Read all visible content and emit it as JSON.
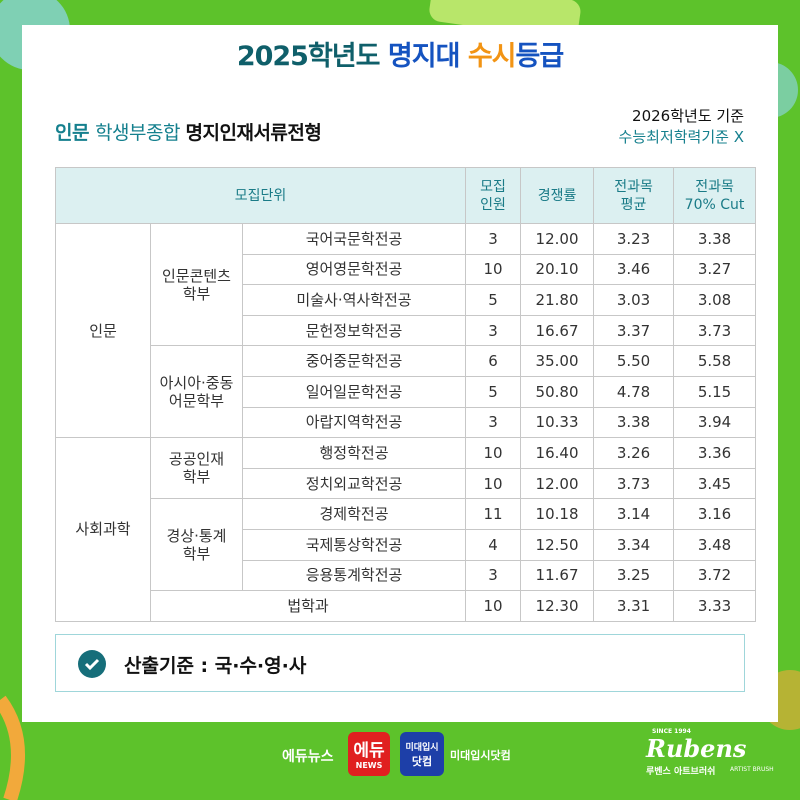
{
  "header": {
    "title": [
      "2025학년도 ",
      "명지대 ",
      "수시",
      "등급"
    ],
    "subtitle": [
      "인문 ",
      "학생부종합 ",
      "명지인재서류전형"
    ],
    "note": [
      "2026학년도 기준",
      "수능최저학력기준 X"
    ]
  },
  "table": {
    "header": [
      [
        "모집단위"
      ],
      [
        "모집",
        "인원"
      ],
      [
        "경쟁률"
      ],
      [
        "전과목",
        "평균"
      ],
      [
        "전과목",
        "70% Cut"
      ]
    ],
    "groups": [
      {
        "name": "인문",
        "divisions": [
          {
            "name": [
              "인문콘텐츠",
              "학부"
            ],
            "majors": [
              {
                "name": "국어국문학전공",
                "recruit": "3",
                "rate": "12.00",
                "avg": "3.23",
                "cut": "3.38"
              },
              {
                "name": "영어영문학전공",
                "recruit": "10",
                "rate": "20.10",
                "avg": "3.46",
                "cut": "3.27"
              },
              {
                "name": "미술사·역사학전공",
                "recruit": "5",
                "rate": "21.80",
                "avg": "3.03",
                "cut": "3.08"
              },
              {
                "name": "문헌정보학전공",
                "recruit": "3",
                "rate": "16.67",
                "avg": "3.37",
                "cut": "3.73"
              }
            ]
          },
          {
            "name": [
              "아시아·중동",
              "어문학부"
            ],
            "majors": [
              {
                "name": "중어중문학전공",
                "recruit": "6",
                "rate": "35.00",
                "avg": "5.50",
                "cut": "5.58"
              },
              {
                "name": "일어일문학전공",
                "recruit": "5",
                "rate": "50.80",
                "avg": "4.78",
                "cut": "5.15"
              },
              {
                "name": "아랍지역학전공",
                "recruit": "3",
                "rate": "10.33",
                "avg": "3.38",
                "cut": "3.94"
              }
            ]
          }
        ]
      },
      {
        "name": "사회과학",
        "divisions": [
          {
            "name": [
              "공공인재",
              "학부"
            ],
            "majors": [
              {
                "name": "행정학전공",
                "recruit": "10",
                "rate": "16.40",
                "avg": "3.26",
                "cut": "3.36"
              },
              {
                "name": "정치외교학전공",
                "recruit": "10",
                "rate": "12.00",
                "avg": "3.73",
                "cut": "3.45"
              }
            ]
          },
          {
            "name": [
              "경상·통계",
              "학부"
            ],
            "majors": [
              {
                "name": "경제학전공",
                "recruit": "11",
                "rate": "10.18",
                "avg": "3.14",
                "cut": "3.16"
              },
              {
                "name": "국제통상학전공",
                "recruit": "4",
                "rate": "12.50",
                "avg": "3.34",
                "cut": "3.48"
              },
              {
                "name": "응용통계학전공",
                "recruit": "3",
                "rate": "11.67",
                "avg": "3.25",
                "cut": "3.72"
              }
            ]
          },
          {
            "majors": [
              {
                "name": "법학과",
                "recruit": "10",
                "rate": "12.30",
                "avg": "3.31",
                "cut": "3.33"
              }
            ]
          }
        ]
      }
    ]
  },
  "footer": {
    "basis": "산출기준 : 국·수·영·사"
  },
  "logos": {
    "edunews": "에듀뉴스",
    "edu_badge": [
      "에듀",
      "NEWS"
    ],
    "midae_badge": [
      "미대입시",
      "닷컴"
    ],
    "midae": "미대입시닷컴",
    "rubens": {
      "since": "SINCE 1994",
      "brand": "Rubens",
      "korean": "루벤스 아트브러쉬",
      "sub": "ARTIST BRUSH"
    }
  }
}
